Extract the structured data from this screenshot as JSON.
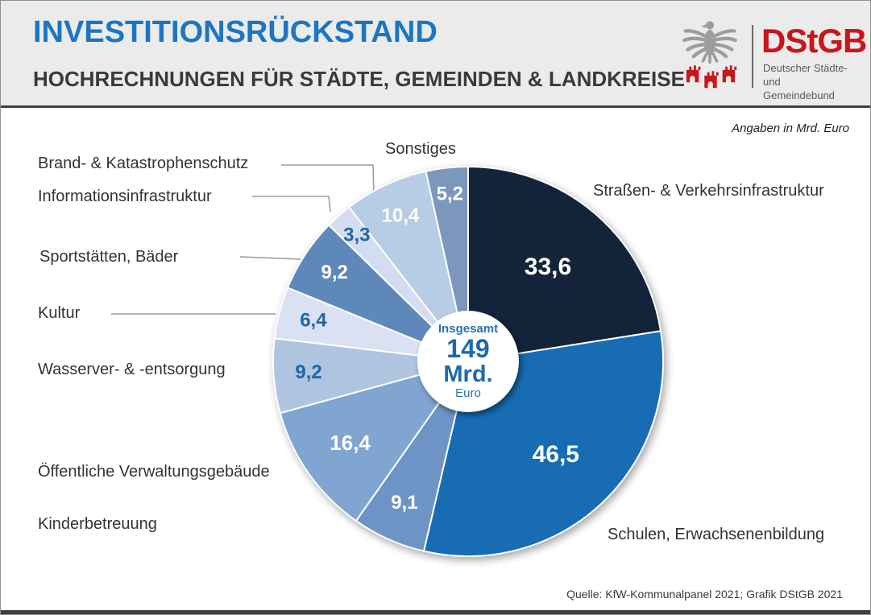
{
  "header": {
    "title": "INVESTITIONSRÜCKSTAND",
    "subtitle": "HOCHRECHNUNGEN FÜR STÄDTE, GEMEINDEN & LANDKREISE",
    "logo": {
      "wordmark": "DStGB",
      "org_line1": "Deutscher Städte-",
      "org_line2": "und Gemeindebund",
      "brand_red": "#C8161D",
      "eagle_gray": "#9D9D9D"
    }
  },
  "chart": {
    "units_note": "Angaben in Mrd. Euro",
    "center": {
      "caption": "Insgesamt",
      "value": "149",
      "unit": "Mrd.",
      "currency": "Euro"
    },
    "source": "Quelle: KfW-Kommunalpanel 2021; Grafik DStGB 2021"
  },
  "chart_data": {
    "type": "pie",
    "title": "Investitionsrückstand – Hochrechnungen für Städte, Gemeinden & Landkreise",
    "units": "Mrd. Euro",
    "total": 149,
    "total_label": "Insgesamt 149 Mrd. Euro",
    "start_angle_deg": 0,
    "direction": "clockwise",
    "segments": [
      {
        "label": "Straßen- & Verkehrsinfrastruktur",
        "value": 33.6,
        "display": "33,6",
        "color": "#13243A",
        "value_color": "#FFFFFF"
      },
      {
        "label": "Schulen, Erwachsenenbildung",
        "value": 46.5,
        "display": "46,5",
        "color": "#176CB4",
        "value_color": "#FFFFFF"
      },
      {
        "label": "Kinderbetreuung",
        "value": 9.1,
        "display": "9,1",
        "color": "#6D94C5",
        "value_color": "#FFFFFF"
      },
      {
        "label": "Öffentliche Verwaltungsgebäude",
        "value": 16.4,
        "display": "16,4",
        "color": "#80A5D1",
        "value_color": "#FFFFFF"
      },
      {
        "label": "Wasserver- & -entsorgung",
        "value": 9.2,
        "display": "9,2",
        "color": "#AFC4E1",
        "value_color": "#2166A5"
      },
      {
        "label": "Kultur",
        "value": 6.4,
        "display": "6,4",
        "color": "#D9E1F2",
        "value_color": "#2166A5"
      },
      {
        "label": "Sportstätten, Bäder",
        "value": 9.2,
        "display": "9,2",
        "color": "#5E88BA",
        "value_color": "#FFFFFF"
      },
      {
        "label": "Informationsinfrastruktur",
        "value": 3.3,
        "display": "3,3",
        "color": "#D3DDEF",
        "value_color": "#2166A5"
      },
      {
        "label": "Brand- & Katastrophenschutz",
        "value": 10.4,
        "display": "10,4",
        "color": "#B7CCE5",
        "value_color": "#FFFFFF"
      },
      {
        "label": "Sonstiges",
        "value": 5.2,
        "display": "5,2",
        "color": "#7C97BB",
        "value_color": "#FFFFFF"
      }
    ]
  }
}
